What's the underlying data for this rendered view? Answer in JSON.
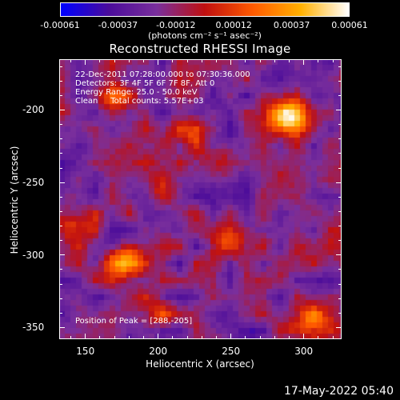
{
  "colorbar": {
    "tick_labels": [
      "-0.00061",
      "-0.00037",
      "-0.00012",
      "0.00012",
      "0.00037",
      "0.00061"
    ],
    "units": "(photons cm⁻² s⁻¹ asec⁻²)",
    "colormap": [
      "#0000ff",
      "#4b0c9a",
      "#7a2f9c",
      "#c01010",
      "#ff5a00",
      "#ffb000",
      "#ffffff"
    ]
  },
  "chart_data": {
    "type": "heatmap",
    "title": "Reconstructed RHESSI Image",
    "xlabel": "Heliocentric X (arcsec)",
    "ylabel": "Heliocentric Y (arcsec)",
    "xlim": [
      132,
      326
    ],
    "ylim": [
      -358,
      -165
    ],
    "xticks": [
      150,
      200,
      250,
      300
    ],
    "yticks": [
      -200,
      -250,
      -300,
      -350
    ],
    "value_range": [
      -0.00061,
      0.00061
    ],
    "annotations": {
      "time": "22-Dec-2011 07:28:00.000 to 07:30:36.000",
      "detectors": "Detectors: 3F 4F 5F 6F 7F 8F, Att 0",
      "energy": "Energy Range: 25.0 - 50.0 keV",
      "clean": "Clean     Total counts: 5.57E+03",
      "peak": "Position of Peak = [288,-205]"
    },
    "peak": [
      288,
      -205
    ],
    "features": [
      {
        "x": 288,
        "y": -205,
        "intensity": 1.0
      },
      {
        "x": 178,
        "y": -305,
        "intensity": 0.75
      },
      {
        "x": 142,
        "y": -280,
        "intensity": 0.55
      },
      {
        "x": 250,
        "y": -292,
        "intensity": 0.55
      },
      {
        "x": 240,
        "y": -235,
        "intensity": 0.45
      },
      {
        "x": 170,
        "y": -195,
        "intensity": 0.45
      },
      {
        "x": 215,
        "y": -215,
        "intensity": 0.4
      },
      {
        "x": 305,
        "y": -345,
        "intensity": 0.45
      },
      {
        "x": 196,
        "y": -340,
        "intensity": 0.35
      },
      {
        "x": 200,
        "y": -255,
        "intensity": 0.3
      }
    ]
  },
  "footer": "17-May-2022 05:40"
}
